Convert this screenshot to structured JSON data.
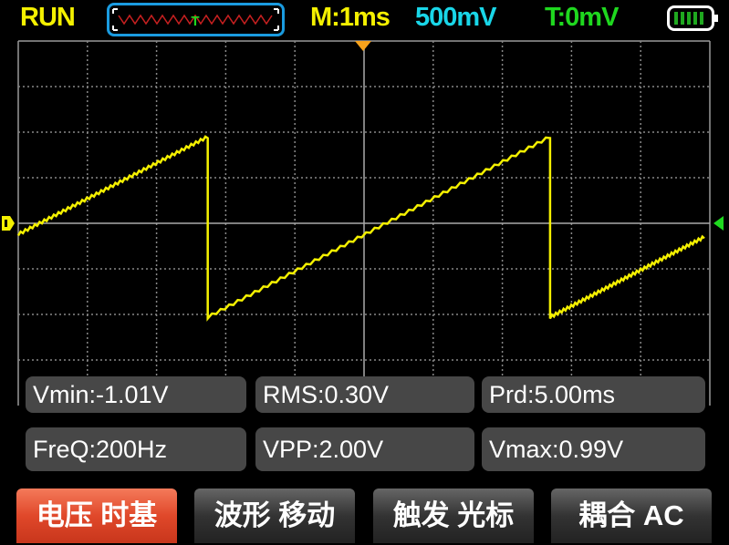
{
  "header": {
    "status": "RUN",
    "timebase": "M:1ms",
    "volts_per_div": "500mV",
    "trigger_level": "T:0mV",
    "trigger_marker": "T",
    "battery_icon": "battery-full-icon"
  },
  "colors": {
    "waveform": "#f4f000",
    "trigger_marker": "#f7a21b",
    "channel_marker": "#1fd81f",
    "active_button": "#e0482a"
  },
  "chart_data": {
    "type": "line",
    "grid": true,
    "x_divisions": 10,
    "y_divisions": 8,
    "x_unit": "ms",
    "x_per_div": 1,
    "y_unit": "V",
    "y_per_div": 0.5,
    "xlim": [
      0,
      10
    ],
    "ylim": [
      -2,
      2
    ],
    "series": [
      {
        "points": [
          [
            0,
            -0.12
          ],
          [
            2.74,
            0.95
          ],
          [
            2.74,
            -1.03
          ],
          [
            7.69,
            0.95
          ],
          [
            7.69,
            -1.03
          ],
          [
            9.92,
            -0.15
          ]
        ]
      }
    ]
  },
  "measurements": [
    {
      "label": "Vmin:-1.01V"
    },
    {
      "label": "RMS:0.30V"
    },
    {
      "label": "Prd:5.00ms"
    },
    {
      "label": "FreQ:200Hz"
    },
    {
      "label": "VPP:2.00V"
    },
    {
      "label": "Vmax:0.99V"
    }
  ],
  "buttons": [
    {
      "label": "电压 时基",
      "active": true
    },
    {
      "label": "波形 移动"
    },
    {
      "label": "触发 光标"
    },
    {
      "label": "耦合  AC"
    }
  ]
}
